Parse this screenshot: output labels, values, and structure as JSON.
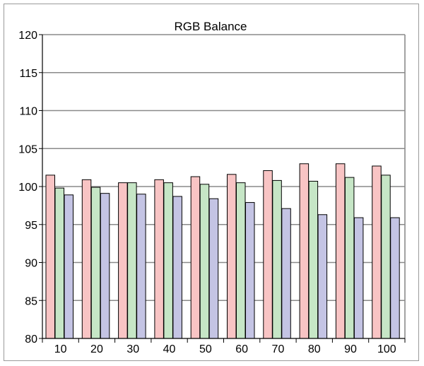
{
  "chart_data": {
    "type": "bar",
    "title": "RGB Balance",
    "xlabel": "",
    "ylabel": "",
    "ylim": [
      80,
      120
    ],
    "yticks": [
      80,
      85,
      90,
      95,
      100,
      105,
      110,
      115,
      120
    ],
    "categories": [
      "10",
      "20",
      "30",
      "40",
      "50",
      "60",
      "70",
      "80",
      "90",
      "100"
    ],
    "series": [
      {
        "color": "#f8c4c4",
        "values": [
          101.5,
          100.9,
          100.5,
          100.9,
          101.3,
          101.6,
          102.1,
          103.0,
          103.0,
          102.7
        ]
      },
      {
        "color": "#c6e6c6",
        "values": [
          99.8,
          99.9,
          100.5,
          100.5,
          100.3,
          100.5,
          100.8,
          100.7,
          101.2,
          101.5
        ]
      },
      {
        "color": "#c4c4e4",
        "values": [
          98.9,
          99.1,
          99.0,
          98.7,
          98.4,
          97.9,
          97.1,
          96.3,
          95.9,
          95.9
        ]
      }
    ],
    "grid": true,
    "legend": "none"
  }
}
